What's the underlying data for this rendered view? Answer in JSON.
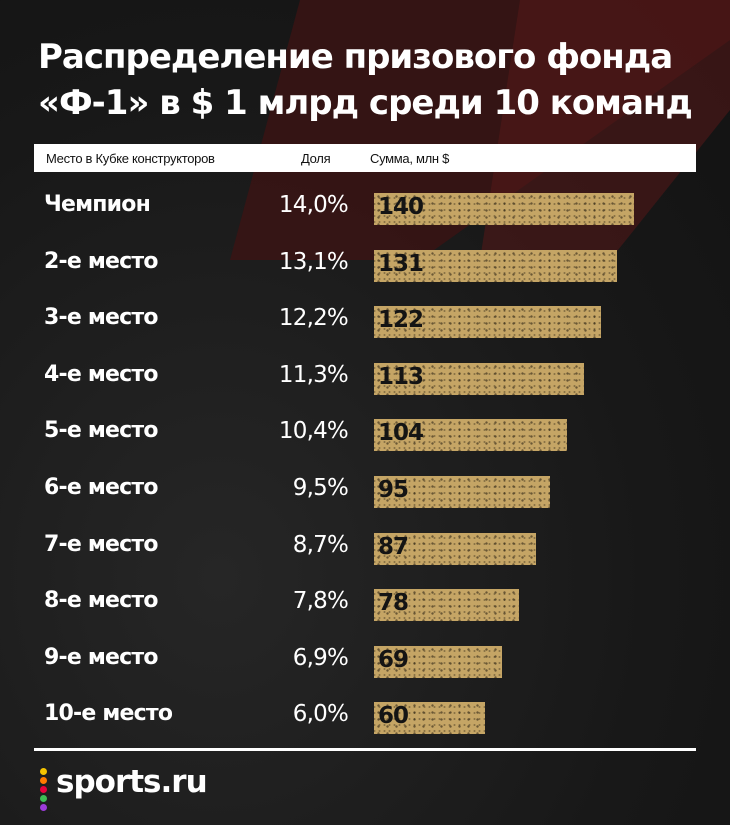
{
  "title_lines": [
    "Распределение призового фонда",
    "«Ф-1» в $ 1 млрд среди 10 команд"
  ],
  "header": {
    "col_place": "Место в Кубке конструкторов",
    "col_share": "Доля",
    "col_amount": "Сумма, млн $"
  },
  "chart_data": {
    "type": "bar",
    "orientation": "horizontal",
    "categories": [
      "Чемпион",
      "2-е место",
      "3-е место",
      "4-е место",
      "5-е место",
      "6-е место",
      "7-е место",
      "8-е место",
      "9-е место",
      "10-е место"
    ],
    "shares": [
      "14,0%",
      "13,1%",
      "12,2%",
      "11,3%",
      "10,4%",
      "9,5%",
      "8,7%",
      "7,8%",
      "6,9%",
      "6,0%"
    ],
    "values": [
      140,
      131,
      122,
      113,
      104,
      95,
      87,
      78,
      69,
      60
    ],
    "value_labels": [
      "140",
      "131",
      "122",
      "113",
      "104",
      "95",
      "87",
      "78",
      "69",
      "60"
    ],
    "xlim": [
      0,
      140
    ],
    "bar_color": "#c5a565"
  },
  "logo": {
    "text": "sports.ru",
    "dot_colors": [
      "#f5c400",
      "#ff7a00",
      "#e5003c",
      "#3dbc54",
      "#9b3cd8"
    ]
  },
  "colors": {
    "background": "#1b1b1b",
    "accent_stripe": "#4a1616"
  }
}
